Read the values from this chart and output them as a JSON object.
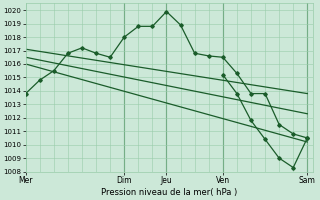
{
  "background_color": "#cce8d8",
  "plot_bg_color": "#cce8d8",
  "grid_color": "#99ccaa",
  "line_color": "#1a5c2a",
  "marker_color": "#1a5c2a",
  "xlabel": "Pression niveau de la mer( hPa )",
  "ylim": [
    1008,
    1020.5
  ],
  "yticks": [
    1008,
    1009,
    1010,
    1011,
    1012,
    1013,
    1014,
    1015,
    1016,
    1017,
    1018,
    1019,
    1020
  ],
  "x_day_labels": [
    "Mer",
    "",
    "Dim",
    "Jeu",
    "",
    "Ven",
    "",
    "Sam"
  ],
  "x_day_display": [
    "Mer",
    "Dim",
    "Jeu",
    "Ven",
    "Sam"
  ],
  "x_day_display_pos": [
    0,
    3.5,
    5.0,
    7.0,
    10.0
  ],
  "xlim": [
    0,
    10.2
  ],
  "vlines": [
    3.5,
    5.0,
    7.0,
    10.0
  ],
  "vline_color": "#4a8a5a",
  "series": [
    {
      "x": [
        0,
        0.5,
        1.0,
        1.5,
        2.0,
        2.5,
        3.0,
        3.5,
        4.0,
        4.5,
        5.0,
        5.5,
        6.0,
        6.5,
        7.0,
        7.5,
        8.0,
        8.5,
        9.0,
        9.5,
        10.0
      ],
      "y": [
        1013.8,
        1014.8,
        1015.5,
        1016.8,
        1017.2,
        1016.8,
        1016.5,
        1018.0,
        1018.8,
        1018.8,
        1019.9,
        1018.9,
        1016.8,
        1016.6,
        1016.5,
        1015.3,
        1013.8,
        1013.8,
        1011.5,
        1010.8,
        1010.5
      ],
      "has_markers": true,
      "lw": 0.9
    },
    {
      "x": [
        0,
        10.0
      ],
      "y": [
        1017.1,
        1013.8
      ],
      "has_markers": false,
      "lw": 0.9
    },
    {
      "x": [
        0,
        10.0
      ],
      "y": [
        1016.5,
        1012.3
      ],
      "has_markers": false,
      "lw": 0.9
    },
    {
      "x": [
        0,
        10.0
      ],
      "y": [
        1016.0,
        1010.2
      ],
      "has_markers": false,
      "lw": 0.9
    },
    {
      "x": [
        7.0,
        7.5,
        8.0,
        8.5,
        9.0,
        9.5,
        10.0
      ],
      "y": [
        1015.2,
        1013.8,
        1011.8,
        1010.4,
        1009.0,
        1008.3,
        1010.5
      ],
      "has_markers": true,
      "lw": 0.9
    }
  ]
}
